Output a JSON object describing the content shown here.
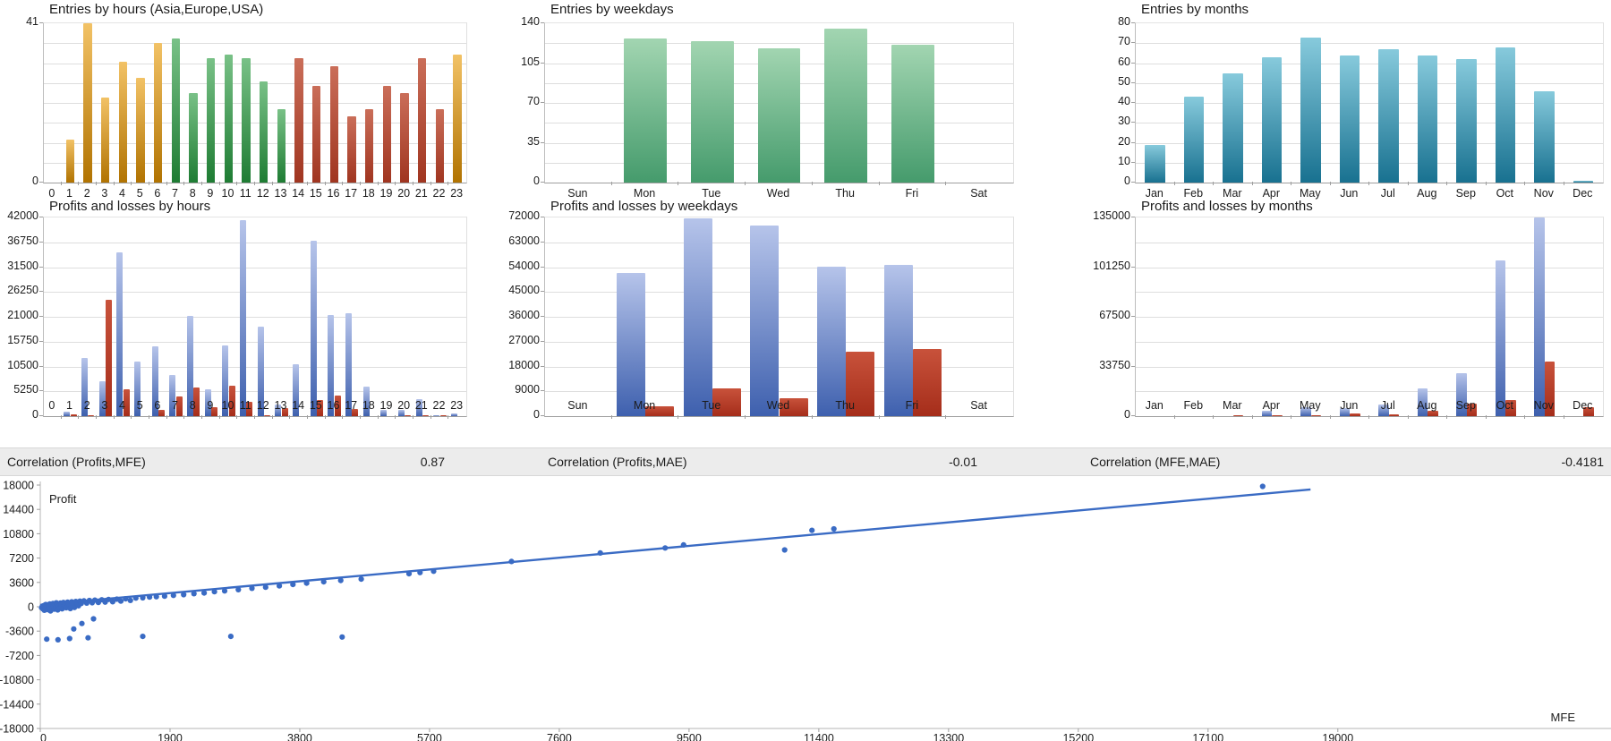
{
  "correlations": [
    {
      "label": "Correlation (Profits,MFE)",
      "value": "0.87"
    },
    {
      "label": "Correlation (Profits,MAE)",
      "value": "-0.01"
    },
    {
      "label": "Correlation (MFE,MAE)",
      "value": "-0.4181"
    }
  ],
  "colors": {
    "asia": [
      "#F2C266",
      "#B17301"
    ],
    "europe": [
      "#79C187",
      "#1E7C33"
    ],
    "usa": [
      "#CA6E59",
      "#A03520"
    ],
    "entry_green": [
      "#A2D5B1",
      "#459B6C"
    ],
    "entry_teal": [
      "#87CADC",
      "#187190"
    ],
    "profit_blue": [
      "#B6C4EA",
      "#3E60AE"
    ],
    "loss_red": [
      "#C8523B",
      "#A52D1A"
    ],
    "scatter_blue": "#3A6BC4",
    "band_bg": "#ECECEC",
    "grid": "#DEDEDE",
    "text": "#1B1B1B"
  },
  "chart_data": [
    {
      "id": "entries-by-hours",
      "type": "bar",
      "title": "Entries by hours (Asia,Europe,USA)",
      "categories": [
        "0",
        "1",
        "2",
        "3",
        "4",
        "5",
        "6",
        "7",
        "8",
        "9",
        "10",
        "11",
        "12",
        "13",
        "14",
        "15",
        "16",
        "17",
        "18",
        "19",
        "20",
        "21",
        "22",
        "23"
      ],
      "values": [
        0,
        11,
        41,
        22,
        31,
        27,
        36,
        37,
        23,
        32,
        33,
        32,
        26,
        19,
        32,
        25,
        30,
        17,
        19,
        25,
        23,
        32,
        19,
        33
      ],
      "bar_colors": [
        "asia",
        "asia",
        "asia",
        "asia",
        "asia",
        "asia",
        "asia",
        "europe",
        "europe",
        "europe",
        "europe",
        "europe",
        "europe",
        "europe",
        "usa",
        "usa",
        "usa",
        "usa",
        "usa",
        "usa",
        "usa",
        "usa",
        "usa",
        "asia"
      ],
      "ylim": [
        0,
        41
      ],
      "yticks": [
        41,
        0
      ],
      "grid_divisions": 8,
      "bar_frac": 0.48,
      "legend_note": "orange=Asia green=Europe red=USA"
    },
    {
      "id": "entries-by-weekdays",
      "type": "bar",
      "title": "Entries by weekdays",
      "categories": [
        "Sun",
        "Mon",
        "Tue",
        "Wed",
        "Thu",
        "Fri",
        "Sat"
      ],
      "values": [
        0,
        127,
        124,
        118,
        135,
        121,
        0
      ],
      "bar_colors": [
        "entry_green",
        "entry_green",
        "entry_green",
        "entry_green",
        "entry_green",
        "entry_green",
        "entry_green"
      ],
      "ylim": [
        0,
        140
      ],
      "yticks": [
        140,
        105,
        70,
        35,
        0
      ],
      "grid_divisions": 8,
      "bar_frac": 0.64
    },
    {
      "id": "entries-by-months",
      "type": "bar",
      "title": "Entries by months",
      "categories": [
        "Jan",
        "Feb",
        "Mar",
        "Apr",
        "May",
        "Jun",
        "Jul",
        "Aug",
        "Sep",
        "Oct",
        "Nov",
        "Dec"
      ],
      "values": [
        19,
        43,
        55,
        63,
        73,
        64,
        67,
        64,
        62,
        68,
        46,
        1
      ],
      "bar_colors": [
        "entry_teal",
        "entry_teal",
        "entry_teal",
        "entry_teal",
        "entry_teal",
        "entry_teal",
        "entry_teal",
        "entry_teal",
        "entry_teal",
        "entry_teal",
        "entry_teal",
        "entry_teal"
      ],
      "ylim": [
        0,
        80
      ],
      "yticks": [
        80,
        70,
        60,
        50,
        40,
        30,
        20,
        10,
        0
      ],
      "grid_divisions": 8,
      "bar_frac": 0.52
    },
    {
      "id": "pnl-by-hours",
      "type": "bar",
      "title": "Profits and losses by hours",
      "categories": [
        "0",
        "1",
        "2",
        "3",
        "4",
        "5",
        "6",
        "7",
        "8",
        "9",
        "10",
        "11",
        "12",
        "13",
        "14",
        "15",
        "16",
        "17",
        "18",
        "19",
        "20",
        "21",
        "22",
        "23"
      ],
      "series": [
        {
          "name": "profit",
          "color_key": "profit_blue",
          "values": [
            0,
            1000,
            12300,
            7300,
            34700,
            11600,
            14700,
            8800,
            21200,
            5600,
            14900,
            41500,
            18900,
            2400,
            10900,
            37100,
            21300,
            21800,
            6200,
            1400,
            1400,
            3600,
            200,
            600
          ]
        },
        {
          "name": "loss",
          "color_key": "loss_red",
          "values": [
            0,
            300,
            250,
            24600,
            5600,
            0,
            1400,
            4200,
            6000,
            1900,
            6400,
            3100,
            200,
            1800,
            0,
            3400,
            4400,
            1500,
            0,
            0,
            150,
            150,
            150,
            0
          ]
        }
      ],
      "ylim": [
        0,
        42000
      ],
      "yticks": [
        42000,
        36750,
        31500,
        26250,
        21000,
        15750,
        10500,
        5250,
        0
      ],
      "grid_divisions": 8,
      "bar_frac": 0.36
    },
    {
      "id": "pnl-by-weekdays",
      "type": "bar",
      "title": "Profits and losses by weekdays",
      "categories": [
        "Sun",
        "Mon",
        "Tue",
        "Wed",
        "Thu",
        "Fri",
        "Sat"
      ],
      "series": [
        {
          "name": "profit",
          "color_key": "profit_blue",
          "values": [
            0,
            52000,
            71800,
            69000,
            54300,
            54700,
            0
          ]
        },
        {
          "name": "loss",
          "color_key": "loss_red",
          "values": [
            0,
            3600,
            10200,
            6500,
            23400,
            24400,
            0
          ]
        }
      ],
      "ylim": [
        0,
        72000
      ],
      "yticks": [
        72000,
        63000,
        54000,
        45000,
        36000,
        27000,
        18000,
        9000,
        0
      ],
      "grid_divisions": 8,
      "bar_frac": 0.43
    },
    {
      "id": "pnl-by-months",
      "type": "bar",
      "title": "Profits and losses by months",
      "categories": [
        "Jan",
        "Feb",
        "Mar",
        "Apr",
        "May",
        "Jun",
        "Jul",
        "Aug",
        "Sep",
        "Oct",
        "Nov",
        "Dec"
      ],
      "series": [
        {
          "name": "profit",
          "color_key": "profit_blue",
          "values": [
            0,
            0,
            0,
            3500,
            6100,
            5400,
            8000,
            19000,
            29000,
            106000,
            135000,
            0
          ]
        },
        {
          "name": "loss",
          "color_key": "loss_red",
          "values": [
            0,
            0,
            800,
            500,
            700,
            2000,
            1200,
            3600,
            8700,
            11000,
            37000,
            6100
          ]
        }
      ],
      "ylim": [
        0,
        135000
      ],
      "yticks": [
        135000,
        101250,
        67500,
        33750,
        0
      ],
      "grid_divisions": 8,
      "bar_frac": 0.26
    },
    {
      "id": "mfe-profit-scatter",
      "type": "scatter",
      "ylabel": "Profit",
      "xlabel": "MFE",
      "xlim": [
        0,
        23000
      ],
      "ylim": [
        -18000,
        18000
      ],
      "xticks": [
        0,
        1900,
        3800,
        5700,
        7600,
        9500,
        11400,
        13300,
        15200,
        17100,
        19000
      ],
      "yticks": [
        18000,
        14400,
        10800,
        7200,
        3600,
        0,
        -3600,
        -7200,
        -10800,
        -14400,
        -18000
      ],
      "trend": {
        "x1": 0,
        "y1": 280,
        "x2": 18600,
        "y2": 17350
      },
      "points": [
        [
          20,
          -150
        ],
        [
          30,
          80
        ],
        [
          40,
          -320
        ],
        [
          55,
          190
        ],
        [
          60,
          -520
        ],
        [
          70,
          40
        ],
        [
          80,
          330
        ],
        [
          90,
          -210
        ],
        [
          100,
          140
        ],
        [
          110,
          -420
        ],
        [
          120,
          290
        ],
        [
          130,
          -90
        ],
        [
          140,
          430
        ],
        [
          150,
          -620
        ],
        [
          160,
          210
        ],
        [
          175,
          -260
        ],
        [
          185,
          480
        ],
        [
          195,
          90
        ],
        [
          205,
          -360
        ],
        [
          215,
          390
        ],
        [
          225,
          -140
        ],
        [
          235,
          580
        ],
        [
          245,
          240
        ],
        [
          255,
          -460
        ],
        [
          265,
          340
        ],
        [
          275,
          90
        ],
        [
          285,
          -210
        ],
        [
          295,
          540
        ],
        [
          305,
          290
        ],
        [
          320,
          -310
        ],
        [
          340,
          630
        ],
        [
          360,
          190
        ],
        [
          380,
          -160
        ],
        [
          400,
          680
        ],
        [
          420,
          340
        ],
        [
          440,
          -260
        ],
        [
          460,
          730
        ],
        [
          480,
          390
        ],
        [
          500,
          -110
        ],
        [
          520,
          780
        ],
        [
          540,
          440
        ],
        [
          560,
          140
        ],
        [
          580,
          830
        ],
        [
          600,
          490
        ],
        [
          640,
          880
        ],
        [
          680,
          540
        ],
        [
          720,
          930
        ],
        [
          760,
          590
        ],
        [
          800,
          980
        ],
        [
          850,
          640
        ],
        [
          900,
          1030
        ],
        [
          950,
          690
        ],
        [
          1000,
          1080
        ],
        [
          1060,
          740
        ],
        [
          1120,
          1130
        ],
        [
          1180,
          840
        ],
        [
          1250,
          1180
        ],
        [
          1320,
          940
        ],
        [
          1400,
          1280
        ],
        [
          1500,
          1330
        ],
        [
          1600,
          1430
        ],
        [
          1700,
          1480
        ],
        [
          1820,
          1560
        ],
        [
          1950,
          1680
        ],
        [
          2100,
          1790
        ],
        [
          2250,
          1930
        ],
        [
          2400,
          2040
        ],
        [
          2550,
          2230
        ],
        [
          2700,
          2340
        ],
        [
          2900,
          2530
        ],
        [
          3100,
          2730
        ],
        [
          3300,
          2890
        ],
        [
          3500,
          3090
        ],
        [
          3700,
          3290
        ],
        [
          3900,
          3490
        ],
        [
          4150,
          3690
        ],
        [
          4400,
          3890
        ],
        [
          4700,
          4090
        ],
        [
          5400,
          4890
        ],
        [
          5560,
          5060
        ],
        [
          5760,
          5260
        ],
        [
          6900,
          6700
        ],
        [
          8200,
          7950
        ],
        [
          9150,
          8700
        ],
        [
          9420,
          9150
        ],
        [
          10900,
          8400
        ],
        [
          11300,
          11300
        ],
        [
          11620,
          11520
        ],
        [
          17900,
          17800
        ],
        [
          95,
          -4790
        ],
        [
          260,
          -4880
        ],
        [
          430,
          -4700
        ],
        [
          700,
          -4590
        ],
        [
          1500,
          -4380
        ],
        [
          2790,
          -4380
        ],
        [
          4420,
          -4480
        ],
        [
          610,
          -2480
        ],
        [
          780,
          -1790
        ],
        [
          490,
          -3280
        ]
      ]
    }
  ]
}
